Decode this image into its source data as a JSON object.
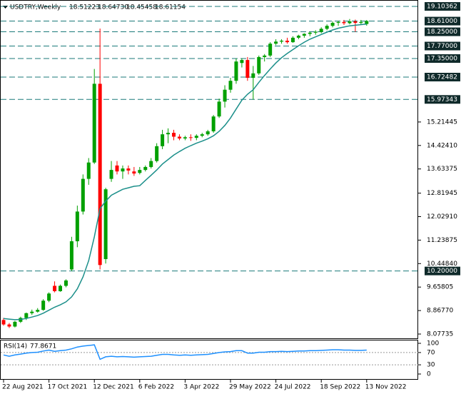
{
  "chart_data": {
    "type": "candlestick",
    "symbol": "USDTRY,Weekly",
    "last_bar_labels": [
      "18.51223",
      "18.64730",
      "18.45458",
      "18.61154"
    ],
    "categories": [
      "22 Aug 2021",
      null,
      null,
      null,
      null,
      null,
      null,
      null,
      "17 Oct 2021",
      null,
      null,
      null,
      null,
      null,
      null,
      null,
      "12 Dec 2021",
      null,
      null,
      null,
      null,
      null,
      null,
      null,
      "6 Feb 2022",
      null,
      null,
      null,
      null,
      null,
      null,
      null,
      "3 Apr 2022",
      null,
      null,
      null,
      null,
      null,
      null,
      null,
      "29 May 2022",
      null,
      null,
      null,
      null,
      null,
      null,
      null,
      "24 Jul 2022",
      null,
      null,
      null,
      null,
      null,
      null,
      null,
      "18 Sep 2022",
      null,
      null,
      null,
      null,
      null,
      null,
      null,
      "13 Nov 2022"
    ],
    "open": [
      8.55,
      8.4,
      8.33,
      8.49,
      8.62,
      8.78,
      8.83,
      8.89,
      9.2,
      9.7,
      9.52,
      9.7,
      10.25,
      11.2,
      12.2,
      13.3,
      13.85,
      16.5,
      10.6,
      13.3,
      13.75,
      13.55,
      13.65,
      13.55,
      13.5,
      13.6,
      13.7,
      13.9,
      14.4,
      14.8,
      14.85,
      14.72,
      14.66,
      14.7,
      14.68,
      14.75,
      14.8,
      14.9,
      15.4,
      15.9,
      16.3,
      16.6,
      17.2,
      17.3,
      16.7,
      16.85,
      17.4,
      17.45,
      17.85,
      17.92,
      17.95,
      17.9,
      18.05,
      18.12,
      18.18,
      18.22,
      18.25,
      18.35,
      18.45,
      18.55,
      18.58,
      18.54,
      18.6,
      18.55,
      18.51223
    ],
    "high": [
      8.62,
      8.45,
      8.52,
      8.66,
      8.8,
      8.9,
      8.95,
      9.25,
      9.48,
      9.85,
      9.74,
      9.92,
      11.35,
      12.4,
      13.45,
      14.0,
      17.0,
      18.36,
      13.0,
      13.9,
      13.9,
      13.75,
      13.75,
      13.7,
      13.7,
      13.75,
      14.0,
      14.5,
      14.95,
      15.0,
      14.95,
      14.8,
      14.75,
      14.8,
      14.8,
      14.85,
      14.95,
      15.45,
      16.0,
      16.45,
      16.7,
      17.35,
      17.35,
      17.4,
      17.1,
      17.45,
      17.5,
      17.9,
      18.0,
      18.0,
      18.05,
      18.1,
      18.15,
      18.2,
      18.25,
      18.3,
      18.4,
      18.5,
      18.6,
      18.62,
      18.65,
      18.68,
      18.66,
      18.65,
      18.6473
    ],
    "low": [
      8.36,
      8.28,
      8.3,
      8.45,
      8.55,
      8.72,
      8.8,
      8.86,
      9.15,
      9.48,
      9.5,
      9.65,
      10.2,
      11.0,
      12.1,
      13.1,
      13.8,
      10.25,
      10.45,
      13.2,
      13.45,
      13.3,
      13.45,
      13.4,
      13.45,
      13.55,
      13.65,
      13.85,
      14.3,
      14.5,
      14.6,
      14.6,
      14.6,
      14.58,
      14.6,
      14.7,
      14.75,
      14.85,
      15.35,
      15.7,
      16.2,
      16.5,
      17.05,
      16.6,
      15.97,
      16.8,
      17.25,
      17.4,
      17.8,
      17.85,
      17.85,
      17.88,
      18.0,
      18.05,
      18.1,
      18.15,
      18.2,
      18.3,
      18.4,
      18.45,
      18.48,
      18.5,
      18.25,
      18.5,
      18.45458
    ],
    "close": [
      8.4,
      8.33,
      8.49,
      8.62,
      8.78,
      8.83,
      8.89,
      9.2,
      9.44,
      9.52,
      9.7,
      9.88,
      11.2,
      12.2,
      13.3,
      13.85,
      16.5,
      10.4,
      12.95,
      13.6,
      13.55,
      13.65,
      13.58,
      13.48,
      13.6,
      13.7,
      13.9,
      14.4,
      14.8,
      14.85,
      14.72,
      14.66,
      14.7,
      14.68,
      14.75,
      14.8,
      14.9,
      15.4,
      15.9,
      16.3,
      16.6,
      17.25,
      17.3,
      16.7,
      16.85,
      17.4,
      17.45,
      17.85,
      17.92,
      17.95,
      17.9,
      18.05,
      18.12,
      18.18,
      18.22,
      18.25,
      18.35,
      18.45,
      18.55,
      18.58,
      18.54,
      18.6,
      18.55,
      18.58,
      18.61154
    ],
    "up_color": "#00a000",
    "down_color": "#ff0000",
    "ma": {
      "color": "#1b8f8a",
      "values": [
        8.6,
        8.58,
        8.56,
        8.57,
        8.6,
        8.65,
        8.7,
        8.78,
        8.88,
        8.98,
        9.06,
        9.16,
        9.33,
        9.6,
        10.0,
        10.55,
        11.35,
        12.3,
        12.55,
        12.75,
        12.85,
        12.95,
        13.0,
        13.05,
        13.07,
        13.25,
        13.42,
        13.6,
        13.8,
        13.95,
        14.1,
        14.22,
        14.33,
        14.42,
        14.5,
        14.57,
        14.65,
        14.75,
        14.9,
        15.1,
        15.35,
        15.65,
        15.95,
        16.15,
        16.3,
        16.55,
        16.78,
        17.0,
        17.2,
        17.38,
        17.52,
        17.65,
        17.78,
        17.9,
        18.0,
        18.08,
        18.16,
        18.24,
        18.31,
        18.37,
        18.41,
        18.45,
        18.47,
        18.49,
        18.51
      ]
    },
    "ylim": [
      8.07735,
      19.10362
    ],
    "yticks": [
      8.07735,
      {
        "value": 8.8677,
        "label": "8.86770"
      },
      9.65805,
      {
        "value": 10.4484,
        "label": "10.44840"
      },
      11.23875,
      {
        "value": 12.0291,
        "label": "12.02910"
      },
      12.81945,
      13.63375,
      {
        "value": 14.4241,
        "label": "14.42410"
      },
      15.21445
    ],
    "levels": [
      {
        "value": 19.10362,
        "label": "19.10362"
      },
      {
        "value": 18.61,
        "label": "18.61000"
      },
      {
        "value": 18.25,
        "label": "18.25000"
      },
      {
        "value": 17.77,
        "label": "17.77000"
      },
      {
        "value": 17.35,
        "label": "17.35000"
      },
      {
        "value": 16.72482,
        "label": "16.72482"
      },
      {
        "value": 15.97343,
        "label": "15.97343"
      },
      {
        "value": 10.2,
        "label": "10.20000"
      }
    ],
    "level_color": "#1b7a7a",
    "rsi": {
      "name": "RSI(14)",
      "color": "#1e90ff",
      "ylim": [
        0,
        100
      ],
      "yticks": [
        100,
        70,
        30,
        0
      ],
      "levels": [
        70,
        30
      ],
      "values": [
        62,
        58,
        62,
        65,
        68,
        70,
        71,
        75,
        78,
        74,
        76,
        78,
        82,
        88,
        91,
        93,
        95,
        48,
        56,
        58,
        56,
        57,
        56,
        55,
        56,
        57,
        58,
        61,
        64,
        64,
        62,
        61,
        62,
        61,
        62,
        63,
        64,
        67,
        70,
        72,
        73,
        76,
        76,
        68,
        68,
        71,
        71,
        73,
        73,
        74,
        73,
        74,
        75,
        75,
        76,
        76,
        77,
        78,
        79,
        79,
        78,
        78,
        77,
        77,
        77.8671
      ]
    }
  }
}
